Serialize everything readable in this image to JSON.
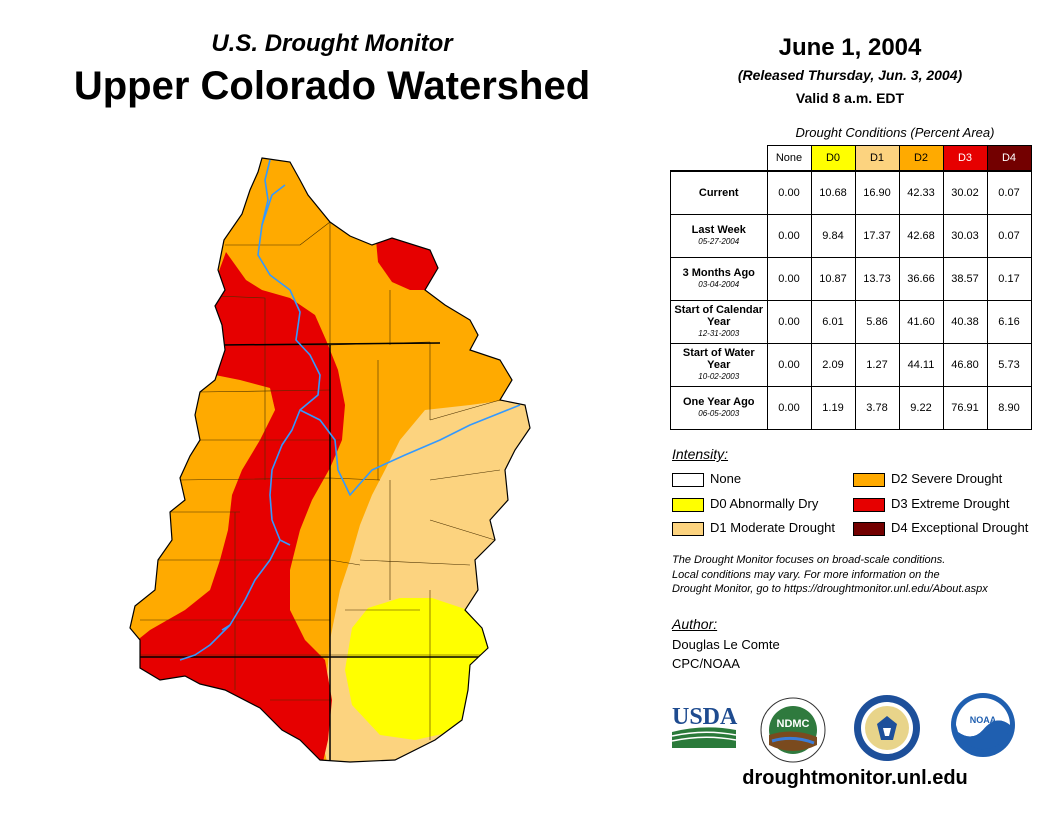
{
  "header": {
    "subtitle": "U.S. Drought Monitor",
    "title": "Upper Colorado Watershed",
    "date": "June 1, 2004",
    "released": "(Released Thursday, Jun. 3, 2004)",
    "valid": "Valid 8 a.m. EDT"
  },
  "table": {
    "caption": "Drought Conditions (Percent Area)",
    "columns": [
      "None",
      "D0",
      "D1",
      "D2",
      "D3",
      "D4"
    ],
    "rows": [
      {
        "label": "Current",
        "sublabel": "",
        "values": [
          "0.00",
          "10.68",
          "16.90",
          "42.33",
          "30.02",
          "0.07"
        ]
      },
      {
        "label": "Last Week",
        "sublabel": "05-27-2004",
        "values": [
          "0.00",
          "9.84",
          "17.37",
          "42.68",
          "30.03",
          "0.07"
        ]
      },
      {
        "label": "3 Months Ago",
        "sublabel": "03-04-2004",
        "values": [
          "0.00",
          "10.87",
          "13.73",
          "36.66",
          "38.57",
          "0.17"
        ]
      },
      {
        "label": "Start of Calendar Year",
        "sublabel": "12-31-2003",
        "values": [
          "0.00",
          "6.01",
          "5.86",
          "41.60",
          "40.38",
          "6.16"
        ]
      },
      {
        "label": "Start of Water Year",
        "sublabel": "10-02-2003",
        "values": [
          "0.00",
          "2.09",
          "1.27",
          "44.11",
          "46.80",
          "5.73"
        ]
      },
      {
        "label": "One Year Ago",
        "sublabel": "06-05-2003",
        "values": [
          "0.00",
          "1.19",
          "3.78",
          "9.22",
          "76.91",
          "8.90"
        ]
      }
    ]
  },
  "legend": {
    "title": "Intensity:",
    "items": [
      {
        "label": "None",
        "color": "#ffffff"
      },
      {
        "label": "D0 Abnormally Dry",
        "color": "#ffff00"
      },
      {
        "label": "D1 Moderate Drought",
        "color": "#fcd37f"
      },
      {
        "label": "D2 Severe Drought",
        "color": "#ffaa00"
      },
      {
        "label": "D3 Extreme Drought",
        "color": "#e60000"
      },
      {
        "label": "D4 Exceptional Drought",
        "color": "#730000"
      }
    ]
  },
  "note": {
    "line1": "The Drought Monitor focuses on broad-scale conditions.",
    "line2": "Local conditions may vary. For more information on the",
    "line3": "Drought Monitor, go to https://droughtmonitor.unl.edu/About.aspx"
  },
  "author": {
    "title": "Author:",
    "name": "Douglas Le Comte",
    "org": "CPC/NOAA"
  },
  "logos": {
    "usda": "USDA",
    "ndmc": "NDMC",
    "noaa": "NOAA"
  },
  "website": "droughtmonitor.unl.edu",
  "colors": {
    "none": "#ffffff",
    "d0": "#ffff00",
    "d1": "#fcd37f",
    "d2": "#ffaa00",
    "d3": "#e60000",
    "d4": "#730000",
    "river": "#3399ff"
  }
}
